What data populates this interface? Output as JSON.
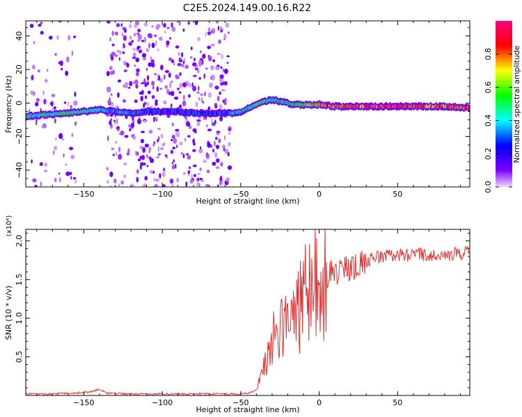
{
  "figure_title": "C2E5.2024.149.00.16.R22",
  "chart_data": [
    {
      "type": "heatmap",
      "title": "C2E5.2024.149.00.16.R22",
      "xlabel": "Height of straight line (km)",
      "ylabel": "Frequency (Hz)",
      "xlim": [
        -187,
        96
      ],
      "ylim": [
        -50,
        49
      ],
      "xticks": [
        -150,
        -100,
        -50,
        0,
        50
      ],
      "yticks": [
        -40,
        -20,
        0,
        20,
        40
      ],
      "colorbar": {
        "label": "Normalized spectral amplitude",
        "range": [
          0,
          1
        ],
        "ticks": [
          0.0,
          0.2,
          0.4,
          0.6,
          0.8
        ],
        "colormap": [
          "#f0d8ff",
          "#8000ff",
          "#0000ff",
          "#00ffff",
          "#00ff00",
          "#ffff00",
          "#ff0000",
          "#ff0080"
        ]
      },
      "ridge": {
        "x": [
          -187,
          -175,
          -160,
          -150,
          -140,
          -130,
          -120,
          -110,
          -100,
          -90,
          -80,
          -70,
          -60,
          -55,
          -50,
          -45,
          -40,
          -35,
          -30,
          -25,
          -20,
          -15,
          -10,
          -5,
          0,
          10,
          20,
          40,
          60,
          80,
          96
        ],
        "y": [
          -8,
          -7,
          -6,
          -5,
          -4,
          -5,
          -6,
          -5,
          -5,
          -5,
          -6,
          -6,
          -6,
          -6,
          -5,
          -3,
          -1,
          1,
          2,
          1,
          0,
          -1,
          -1,
          -1,
          -1,
          -2,
          -2,
          -2,
          -2,
          -2,
          -3
        ],
        "amplitude": [
          0.45,
          0.5,
          0.55,
          0.5,
          0.45,
          0.35,
          0.35,
          0.3,
          0.3,
          0.3,
          0.3,
          0.3,
          0.3,
          0.35,
          0.45,
          0.5,
          0.55,
          0.5,
          0.5,
          0.45,
          0.5,
          0.5,
          0.6,
          0.7,
          0.8,
          0.85,
          0.9,
          0.92,
          0.95,
          0.85,
          0.9
        ]
      },
      "scatter_regions": [
        {
          "x_range": [
            -185,
            -155
          ],
          "density": 0.35
        },
        {
          "x_range": [
            -135,
            -57
          ],
          "density": 0.9
        }
      ]
    },
    {
      "type": "line",
      "title": "",
      "xlabel": "Height of straight line (km)",
      "ylabel": "SNR (10 * v/v)",
      "yscale_label": "(x10⁴)",
      "xlim": [
        -187,
        96
      ],
      "ylim": [
        0,
        2.15
      ],
      "xticks": [
        -150,
        -100,
        -50,
        0,
        50
      ],
      "yticks": [
        0.5,
        1.0,
        1.5,
        2.0
      ],
      "color": "#e03030",
      "series": [
        {
          "x": [
            -187,
            -170,
            -155,
            -145,
            -140,
            -135,
            -120,
            -100,
            -80,
            -60,
            -50,
            -45,
            -40,
            -35,
            -30,
            -25,
            -20,
            -15,
            -10,
            -5,
            0,
            5,
            10,
            15,
            20,
            25,
            30,
            35,
            40,
            50,
            60,
            70,
            80,
            90,
            96
          ],
          "values": [
            0.02,
            0.02,
            0.03,
            0.05,
            0.08,
            0.03,
            0.02,
            0.02,
            0.02,
            0.02,
            0.02,
            0.03,
            0.08,
            0.35,
            0.7,
            0.8,
            0.9,
            1.0,
            1.3,
            1.45,
            1.5,
            1.55,
            1.6,
            1.62,
            1.65,
            1.7,
            1.75,
            1.78,
            1.8,
            1.82,
            1.82,
            1.82,
            1.83,
            1.84,
            1.85
          ]
        }
      ]
    }
  ]
}
